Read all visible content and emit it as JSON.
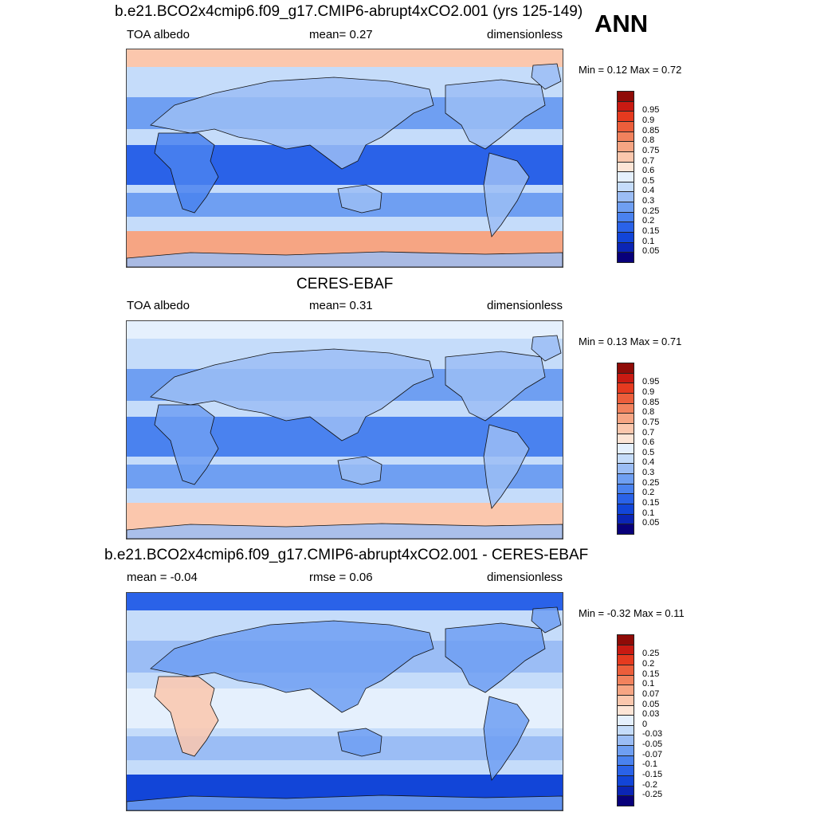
{
  "ann_label": "ANN",
  "panels": [
    {
      "title": "b.e21.BCO2x4cmip6.f09_g17.CMIP6-abrupt4xCO2.001 (yrs 125-149)",
      "left_label": "TOA albedo",
      "center_label": "mean=   0.27",
      "right_label": "dimensionless",
      "minmax": "Min =   0.12 Max =   0.72",
      "palette": [
        "#08007a",
        "#0b25b5",
        "#1245d8",
        "#2a62e8",
        "#4a82ef",
        "#6f9ff2",
        "#9bbdf5",
        "#c5dcfa",
        "#e5f0fd",
        "#fde5d6",
        "#fbc7ad",
        "#f6a583",
        "#f1825d",
        "#ec5e3b",
        "#e53a1f",
        "#c81a12",
        "#8f0b07"
      ],
      "ticks": [
        "0.05",
        "0.1",
        "0.15",
        "0.2",
        "0.25",
        "0.3",
        "0.4",
        "0.5",
        "0.6",
        "0.7",
        "0.75",
        "0.8",
        "0.85",
        "0.9",
        "0.95"
      ],
      "map": {
        "bg": "#c5dcfa",
        "arctic": "#fbc7ad",
        "antarctic": "#f6a583",
        "tropics": "#2a62e8",
        "subtropics": "#6f9ff2",
        "land": "#9bbdf5",
        "dry": "#4a82ef"
      }
    },
    {
      "title": "CERES-EBAF",
      "left_label": "TOA albedo",
      "center_label": "mean=   0.31",
      "right_label": "dimensionless",
      "minmax": "Min =   0.13 Max =   0.71",
      "palette": [
        "#08007a",
        "#0b25b5",
        "#1245d8",
        "#2a62e8",
        "#4a82ef",
        "#6f9ff2",
        "#9bbdf5",
        "#c5dcfa",
        "#e5f0fd",
        "#fde5d6",
        "#fbc7ad",
        "#f6a583",
        "#f1825d",
        "#ec5e3b",
        "#e53a1f",
        "#c81a12",
        "#8f0b07"
      ],
      "ticks": [
        "0.05",
        "0.1",
        "0.15",
        "0.2",
        "0.25",
        "0.3",
        "0.4",
        "0.5",
        "0.6",
        "0.7",
        "0.75",
        "0.8",
        "0.85",
        "0.9",
        "0.95"
      ],
      "map": {
        "bg": "#c5dcfa",
        "arctic": "#e5f0fd",
        "antarctic": "#fbc7ad",
        "tropics": "#4a82ef",
        "subtropics": "#6f9ff2",
        "land": "#9bbdf5",
        "dry": "#6f9ff2"
      }
    },
    {
      "title": "b.e21.BCO2x4cmip6.f09_g17.CMIP6-abrupt4xCO2.001 - CERES-EBAF",
      "left_label": "mean =  -0.04",
      "center_label": "rmse =   0.06",
      "right_label": "dimensionless",
      "minmax": "Min =  -0.32 Max =   0.11",
      "palette": [
        "#08007a",
        "#0b25b5",
        "#1245d8",
        "#2a62e8",
        "#4a82ef",
        "#6f9ff2",
        "#9bbdf5",
        "#c5dcfa",
        "#e5f0fd",
        "#fde5d6",
        "#fbc7ad",
        "#f6a583",
        "#f1825d",
        "#ec5e3b",
        "#e53a1f",
        "#c81a12",
        "#8f0b07"
      ],
      "ticks": [
        "-0.25",
        "-0.2",
        "-0.15",
        "-0.1",
        "-0.07",
        "-0.05",
        "-0.03",
        "0",
        "0.03",
        "0.05",
        "0.07",
        "0.1",
        "0.15",
        "0.2",
        "0.25"
      ],
      "map": {
        "bg": "#c5dcfa",
        "arctic": "#2a62e8",
        "antarctic": "#1245d8",
        "tropics": "#e5f0fd",
        "subtropics": "#9bbdf5",
        "land": "#6f9ff2",
        "dry": "#fbc7ad"
      }
    }
  ]
}
